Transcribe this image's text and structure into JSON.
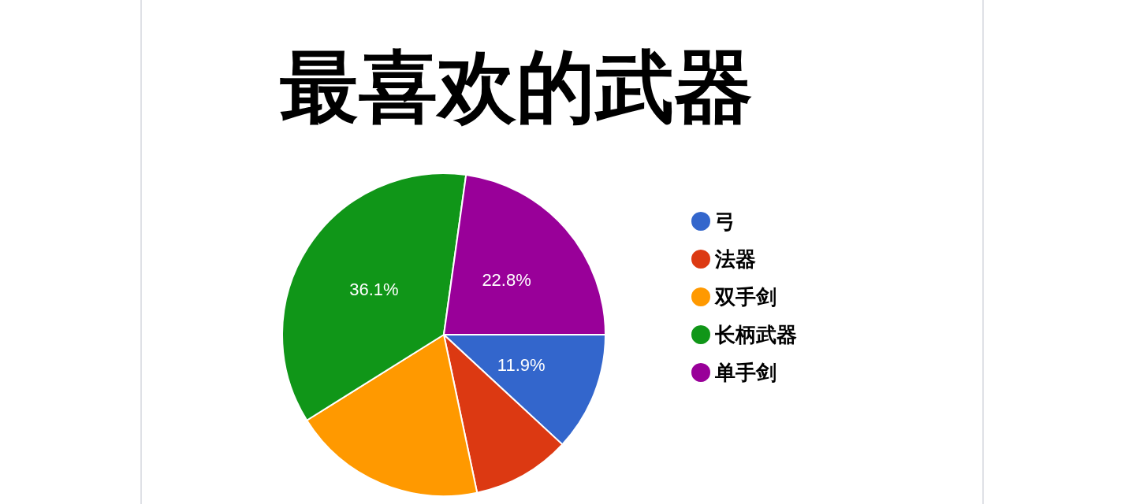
{
  "chart_data": {
    "type": "pie",
    "title": "最喜欢的武器",
    "categories": [
      "弓",
      "法器",
      "双手剑",
      "长柄武器",
      "单手剑"
    ],
    "values": [
      11.9,
      9.8,
      19.4,
      36.1,
      22.8
    ],
    "value_labels": [
      "11.9%",
      null,
      null,
      "36.1%",
      "22.8%"
    ],
    "colors": [
      "#3366cc",
      "#dc3912",
      "#ff9900",
      "#109618",
      "#990099"
    ],
    "legend": "right"
  }
}
